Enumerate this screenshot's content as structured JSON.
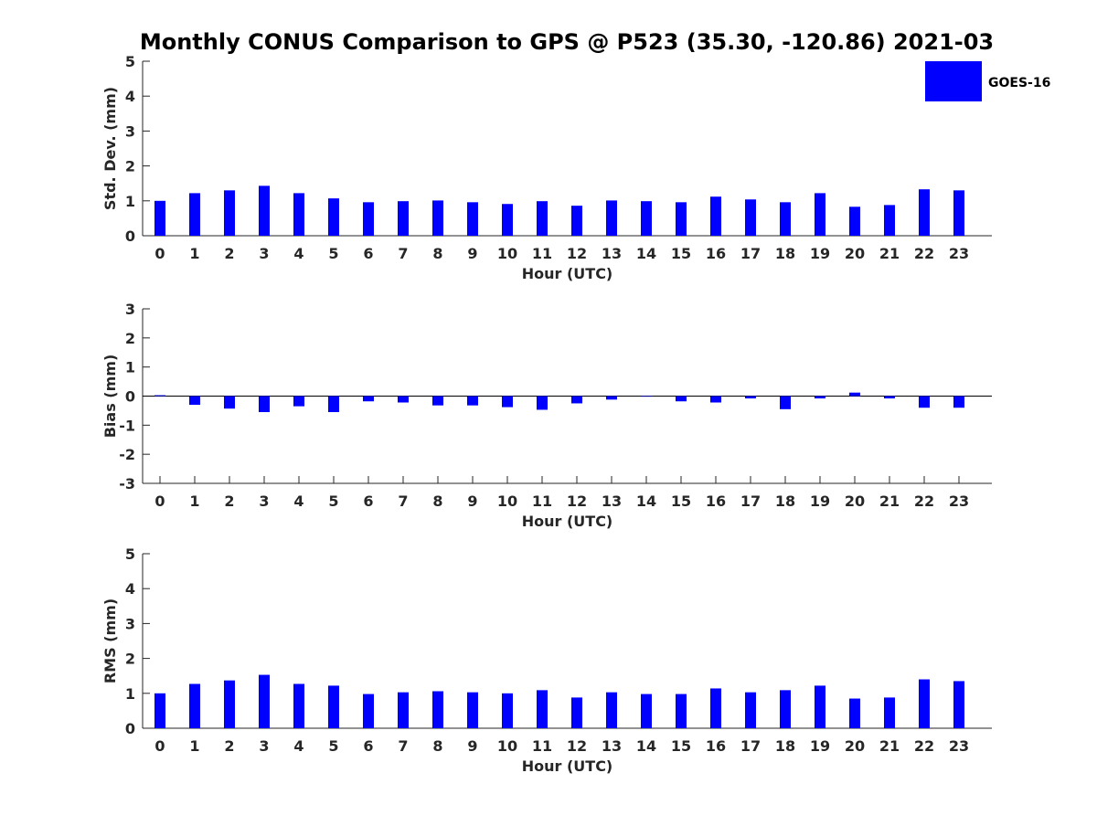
{
  "title": "Monthly CONUS Comparison to GPS @ P523 (35.30, -120.86) 2021-03",
  "colors": {
    "bar": "#0000ff",
    "axis": "#262626"
  },
  "legend": {
    "label": "GOES-16",
    "position": "top-right"
  },
  "chart_data": [
    {
      "type": "bar",
      "xlabel": "Hour (UTC)",
      "ylabel": "Std. Dev. (mm)",
      "ylim": [
        0,
        5
      ],
      "yticks": [
        0,
        1,
        2,
        3,
        4,
        5
      ],
      "categories": [
        "0",
        "1",
        "2",
        "3",
        "4",
        "5",
        "6",
        "7",
        "8",
        "9",
        "10",
        "11",
        "12",
        "13",
        "14",
        "15",
        "16",
        "17",
        "18",
        "19",
        "20",
        "21",
        "22",
        "23"
      ],
      "series": [
        {
          "name": "GOES-16",
          "values": [
            1.0,
            1.22,
            1.3,
            1.43,
            1.22,
            1.07,
            0.96,
            0.99,
            1.01,
            0.96,
            0.91,
            0.99,
            0.86,
            1.01,
            0.99,
            0.96,
            1.12,
            1.04,
            0.96,
            1.22,
            0.83,
            0.88,
            1.33,
            1.3
          ]
        }
      ]
    },
    {
      "type": "bar",
      "xlabel": "Hour (UTC)",
      "ylabel": "Bias (mm)",
      "ylim": [
        -3,
        3
      ],
      "yticks": [
        -3,
        -2,
        -1,
        0,
        1,
        2,
        3
      ],
      "categories": [
        "0",
        "1",
        "2",
        "3",
        "4",
        "5",
        "6",
        "7",
        "8",
        "9",
        "10",
        "11",
        "12",
        "13",
        "14",
        "15",
        "16",
        "17",
        "18",
        "19",
        "20",
        "21",
        "22",
        "23"
      ],
      "series": [
        {
          "name": "GOES-16",
          "values": [
            0.03,
            -0.3,
            -0.43,
            -0.55,
            -0.35,
            -0.55,
            -0.18,
            -0.22,
            -0.32,
            -0.32,
            -0.38,
            -0.47,
            -0.25,
            -0.12,
            -0.02,
            -0.18,
            -0.22,
            -0.08,
            -0.45,
            -0.08,
            0.12,
            -0.08,
            -0.4,
            -0.4
          ]
        }
      ]
    },
    {
      "type": "bar",
      "xlabel": "Hour (UTC)",
      "ylabel": "RMS (mm)",
      "ylim": [
        0,
        5
      ],
      "yticks": [
        0,
        1,
        2,
        3,
        4,
        5
      ],
      "categories": [
        "0",
        "1",
        "2",
        "3",
        "4",
        "5",
        "6",
        "7",
        "8",
        "9",
        "10",
        "11",
        "12",
        "13",
        "14",
        "15",
        "16",
        "17",
        "18",
        "19",
        "20",
        "21",
        "22",
        "23"
      ],
      "series": [
        {
          "name": "GOES-16",
          "values": [
            1.0,
            1.27,
            1.37,
            1.53,
            1.27,
            1.22,
            0.98,
            1.03,
            1.06,
            1.03,
            1.0,
            1.09,
            0.88,
            1.03,
            0.98,
            0.98,
            1.14,
            1.03,
            1.09,
            1.22,
            0.85,
            0.88,
            1.4,
            1.35
          ]
        }
      ]
    }
  ]
}
